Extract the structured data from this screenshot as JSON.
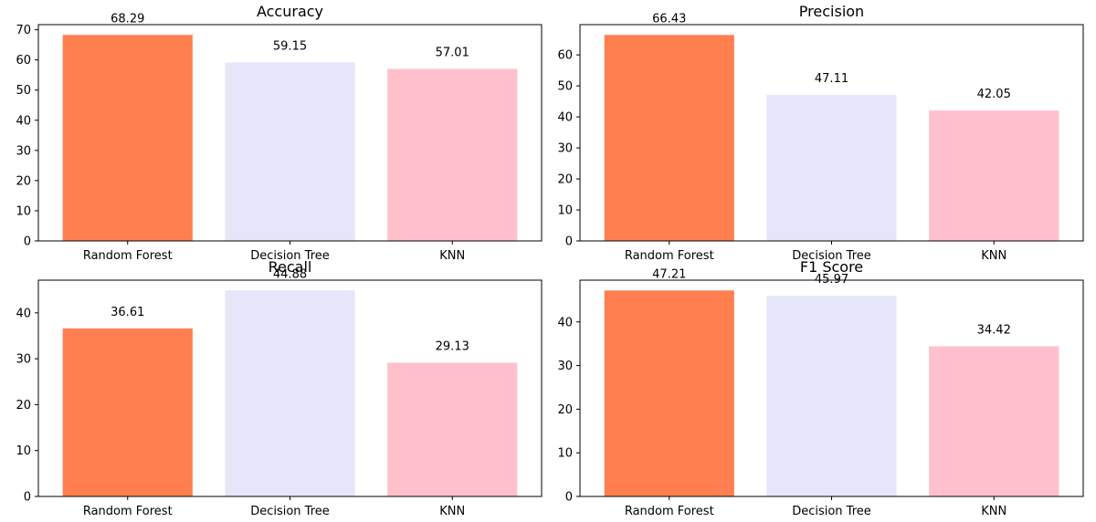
{
  "chart_data": [
    {
      "type": "bar",
      "title": "Accuracy",
      "xlabel": "",
      "ylabel": "",
      "categories": [
        "Random Forest",
        "Decision Tree",
        "KNN"
      ],
      "values": [
        68.29,
        59.15,
        57.01
      ],
      "value_labels": [
        "68.29",
        "59.15",
        "57.01"
      ],
      "colors": [
        "#ff7f50",
        "#e6e6fa",
        "#ffc0cb"
      ],
      "ylim": [
        0,
        71.7
      ],
      "yticks": [
        0,
        10,
        20,
        30,
        40,
        50,
        60,
        70
      ],
      "grid": false,
      "legend": "none"
    },
    {
      "type": "bar",
      "title": "Precision",
      "xlabel": "",
      "ylabel": "",
      "categories": [
        "Random Forest",
        "Decision Tree",
        "KNN"
      ],
      "values": [
        66.43,
        47.11,
        42.05
      ],
      "value_labels": [
        "66.43",
        "47.11",
        "42.05"
      ],
      "colors": [
        "#ff7f50",
        "#e6e6fa",
        "#ffc0cb"
      ],
      "ylim": [
        0,
        69.75
      ],
      "yticks": [
        0,
        10,
        20,
        30,
        40,
        50,
        60
      ],
      "grid": false,
      "legend": "none"
    },
    {
      "type": "bar",
      "title": "Recall",
      "xlabel": "",
      "ylabel": "",
      "categories": [
        "Random Forest",
        "Decision Tree",
        "KNN"
      ],
      "values": [
        36.61,
        44.88,
        29.13
      ],
      "value_labels": [
        "36.61",
        "44.88",
        "29.13"
      ],
      "colors": [
        "#ff7f50",
        "#e6e6fa",
        "#ffc0cb"
      ],
      "ylim": [
        0,
        47.12
      ],
      "yticks": [
        0,
        10,
        20,
        30,
        40
      ],
      "grid": false,
      "legend": "none"
    },
    {
      "type": "bar",
      "title": "F1 Score",
      "xlabel": "",
      "ylabel": "",
      "categories": [
        "Random Forest",
        "Decision Tree",
        "KNN"
      ],
      "values": [
        47.21,
        45.97,
        34.42
      ],
      "value_labels": [
        "47.21",
        "45.97",
        "34.42"
      ],
      "colors": [
        "#ff7f50",
        "#e6e6fa",
        "#ffc0cb"
      ],
      "ylim": [
        0,
        49.57
      ],
      "yticks": [
        0,
        10,
        20,
        30,
        40
      ],
      "grid": false,
      "legend": "none"
    }
  ]
}
